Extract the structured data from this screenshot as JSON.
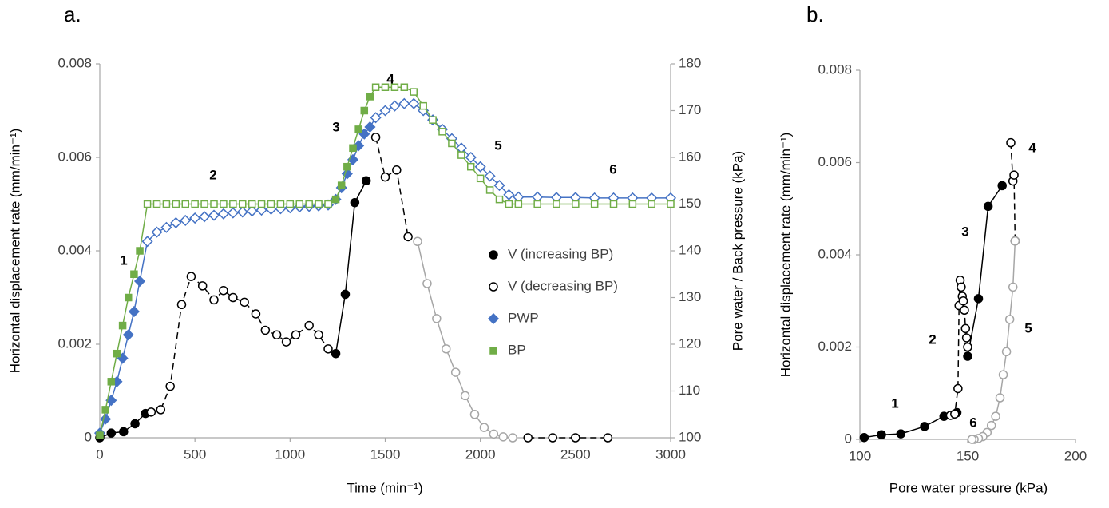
{
  "chart_data": [
    {
      "type": "line",
      "title": "a.",
      "xlabel": "Time (min⁻¹)",
      "ylabel": "Horizontal displacement rate (mm/min⁻¹)",
      "y2label": "Pore water / Back pressure (kPa)",
      "xlim": [
        0,
        3000
      ],
      "xticks": [
        0,
        500,
        1000,
        1500,
        2000,
        2500,
        3000
      ],
      "ylim": [
        0,
        0.008
      ],
      "yticks": [
        0,
        0.002,
        0.004,
        0.006,
        0.008
      ],
      "y2lim": [
        100,
        180
      ],
      "y2ticks": [
        100,
        110,
        120,
        130,
        140,
        150,
        160,
        170,
        180
      ],
      "legend": "right",
      "grid": false,
      "annotations": [
        "1",
        "2",
        "3",
        "4",
        "5",
        "6"
      ],
      "series": [
        {
          "name": "V (increasing BP)",
          "color": "#000000",
          "marker": "circle",
          "filled": true,
          "dashed": false,
          "x": [
            0,
            60,
            125,
            185,
            240,
            null,
            1240,
            1290,
            1340,
            1400
          ],
          "values": [
            0,
            0.0001,
            0.00013,
            0.0003,
            0.00052,
            null,
            0.0018,
            0.00307,
            0.00503,
            0.0055
          ]
        },
        {
          "name": "V (decreasing BP)",
          "color": "#000000",
          "marker": "circle",
          "filled": false,
          "dashed": true,
          "x": [
            270,
            320,
            370,
            430,
            480,
            540,
            600,
            650,
            700,
            760,
            820,
            870,
            930,
            980,
            1030,
            1100,
            1150,
            1200,
            null,
            1450,
            1500,
            1560,
            1620,
            null,
            2250,
            2380,
            2500,
            2670
          ],
          "values": [
            0.00055,
            0.0006,
            0.0011,
            0.00285,
            0.00345,
            0.00325,
            0.00295,
            0.00315,
            0.003,
            0.0029,
            0.00265,
            0.0023,
            0.0022,
            0.00205,
            0.0022,
            0.0024,
            0.0022,
            0.0019,
            null,
            0.00643,
            0.00558,
            0.00573,
            0.0043,
            null,
            0,
            0,
            0,
            0
          ]
        },
        {
          "color": "#a6a6a6",
          "marker": "circle",
          "filled": false,
          "dashed": false,
          "x": [
            1670,
            1720,
            1770,
            1820,
            1870,
            1920,
            1970,
            2020,
            2070,
            2120,
            2170
          ],
          "values": [
            0.0042,
            0.0033,
            0.00255,
            0.0019,
            0.0014,
            0.0009,
            0.0005,
            0.00022,
            8e-05,
            2e-05,
            0
          ]
        },
        {
          "name": "PWP",
          "color": "#4472c4",
          "marker": "diamond",
          "axis": "y2",
          "dashed": false,
          "filled": [
            true,
            true,
            true,
            true,
            true,
            true,
            true,
            true,
            false,
            false,
            false,
            false,
            false,
            false,
            false,
            false,
            false,
            false,
            false,
            false,
            false,
            false,
            false,
            false,
            false,
            false,
            false,
            false,
            true,
            true,
            true,
            true,
            true,
            true,
            true,
            false,
            false,
            false,
            false,
            false,
            false,
            false,
            false,
            false,
            false,
            false,
            false,
            false,
            false,
            false,
            false,
            false,
            false,
            false,
            false,
            false,
            false,
            false,
            false
          ],
          "x": [
            0,
            30,
            60,
            90,
            120,
            150,
            180,
            210,
            250,
            300,
            350,
            400,
            450,
            500,
            550,
            600,
            650,
            700,
            750,
            800,
            850,
            900,
            950,
            1000,
            1050,
            1100,
            1150,
            1200,
            1240,
            1270,
            1300,
            1330,
            1360,
            1390,
            1420,
            1450,
            1500,
            1550,
            1600,
            1650,
            1700,
            1750,
            1800,
            1850,
            1900,
            1950,
            2000,
            2050,
            2100,
            2150,
            2200,
            2300,
            2400,
            2500,
            2600,
            2700,
            2800,
            2900,
            3000
          ],
          "values": [
            101,
            104,
            108,
            112,
            117,
            122,
            127,
            133.5,
            142,
            144,
            145,
            146,
            146.5,
            147,
            147.3,
            147.6,
            147.9,
            148.1,
            148.3,
            148.5,
            148.7,
            148.9,
            149,
            149.2,
            149.4,
            149.5,
            149.6,
            149.8,
            151,
            153.5,
            156.5,
            159.5,
            162.5,
            165,
            166.5,
            168.5,
            170,
            171,
            171.5,
            171.5,
            170,
            168,
            166,
            164,
            162,
            160,
            158,
            156,
            154,
            152,
            151.5,
            151.5,
            151.4,
            151.4,
            151.3,
            151.3,
            151.3,
            151.3,
            151.3
          ]
        },
        {
          "name": "BP",
          "color": "#70ad47",
          "marker": "square",
          "axis": "y2",
          "dashed": false,
          "filled": [
            true,
            true,
            true,
            true,
            true,
            true,
            true,
            true,
            false,
            false,
            false,
            false,
            false,
            false,
            false,
            false,
            false,
            false,
            false,
            false,
            false,
            false,
            false,
            false,
            false,
            false,
            false,
            false,
            true,
            true,
            true,
            true,
            true,
            true,
            true,
            false,
            false,
            false,
            false,
            false,
            false,
            false,
            false,
            false,
            false,
            false,
            false,
            false,
            false,
            false,
            false,
            false,
            false,
            false,
            false,
            false,
            false,
            false,
            false
          ],
          "x": [
            0,
            30,
            60,
            90,
            120,
            150,
            180,
            210,
            250,
            300,
            350,
            400,
            450,
            500,
            550,
            600,
            650,
            700,
            750,
            800,
            850,
            900,
            950,
            1000,
            1050,
            1100,
            1150,
            1200,
            1240,
            1270,
            1300,
            1330,
            1360,
            1390,
            1420,
            1450,
            1500,
            1550,
            1600,
            1650,
            1700,
            1750,
            1800,
            1850,
            1900,
            1950,
            2000,
            2050,
            2100,
            2150,
            2200,
            2300,
            2400,
            2500,
            2600,
            2700,
            2800,
            2900,
            3000
          ],
          "values": [
            100.5,
            106,
            112,
            118,
            124,
            130,
            135,
            140,
            150,
            150,
            150,
            150,
            150,
            150,
            150,
            150,
            150,
            150,
            150,
            150,
            150,
            150,
            150,
            150,
            150,
            150,
            150,
            150,
            151,
            154,
            158,
            162,
            166,
            170,
            173,
            175,
            175,
            175,
            175,
            174,
            171,
            168,
            165.5,
            163,
            160.5,
            158,
            155.5,
            153,
            151,
            150,
            150,
            150,
            150,
            150,
            150,
            150,
            150,
            150,
            150
          ]
        }
      ]
    },
    {
      "type": "line",
      "title": "b.",
      "xlabel": "Pore water pressure (kPa)",
      "ylabel": "Horizontal displacement rate (mm/min⁻¹)",
      "xlim": [
        100,
        200
      ],
      "xticks": [
        100,
        150,
        200
      ],
      "ylim": [
        0,
        0.008
      ],
      "yticks": [
        0,
        0.002,
        0.004,
        0.006,
        0.008
      ],
      "grid": false,
      "annotations": [
        "1",
        "2",
        "3",
        "4",
        "5",
        "6"
      ],
      "series": [
        {
          "color": "#000000",
          "marker": "circle",
          "filled": true,
          "dashed": false,
          "x": [
            102,
            110,
            119,
            130,
            139,
            145,
            null,
            150,
            155,
            159.5,
            166
          ],
          "values": [
            4e-05,
            0.0001,
            0.00012,
            0.00028,
            0.0005,
            0.00058,
            null,
            0.0018,
            0.00305,
            0.00505,
            0.0055
          ]
        },
        {
          "color": "#000000",
          "marker": "circle",
          "filled": false,
          "dashed": true,
          "x": [
            142,
            144,
            145.5,
            146,
            146.5,
            147,
            147.5,
            148,
            148.5,
            149,
            149.5,
            150,
            null,
            170,
            171,
            171.5,
            172
          ],
          "values": [
            0.00052,
            0.00055,
            0.0011,
            0.0029,
            0.00345,
            0.0033,
            0.0031,
            0.003,
            0.0028,
            0.0024,
            0.0022,
            0.002,
            null,
            0.00643,
            0.0056,
            0.00573,
            0.0043
          ]
        },
        {
          "color": "#a6a6a6",
          "marker": "circle",
          "filled": false,
          "dashed": false,
          "x": [
            172,
            171,
            169.5,
            168,
            166.5,
            165,
            163,
            161,
            159,
            157,
            155,
            153,
            152
          ],
          "values": [
            0.0043,
            0.0033,
            0.0026,
            0.0019,
            0.0014,
            0.0009,
            0.0005,
            0.0003,
            0.00015,
            6e-05,
            2e-05,
            0,
            0
          ]
        }
      ]
    }
  ]
}
